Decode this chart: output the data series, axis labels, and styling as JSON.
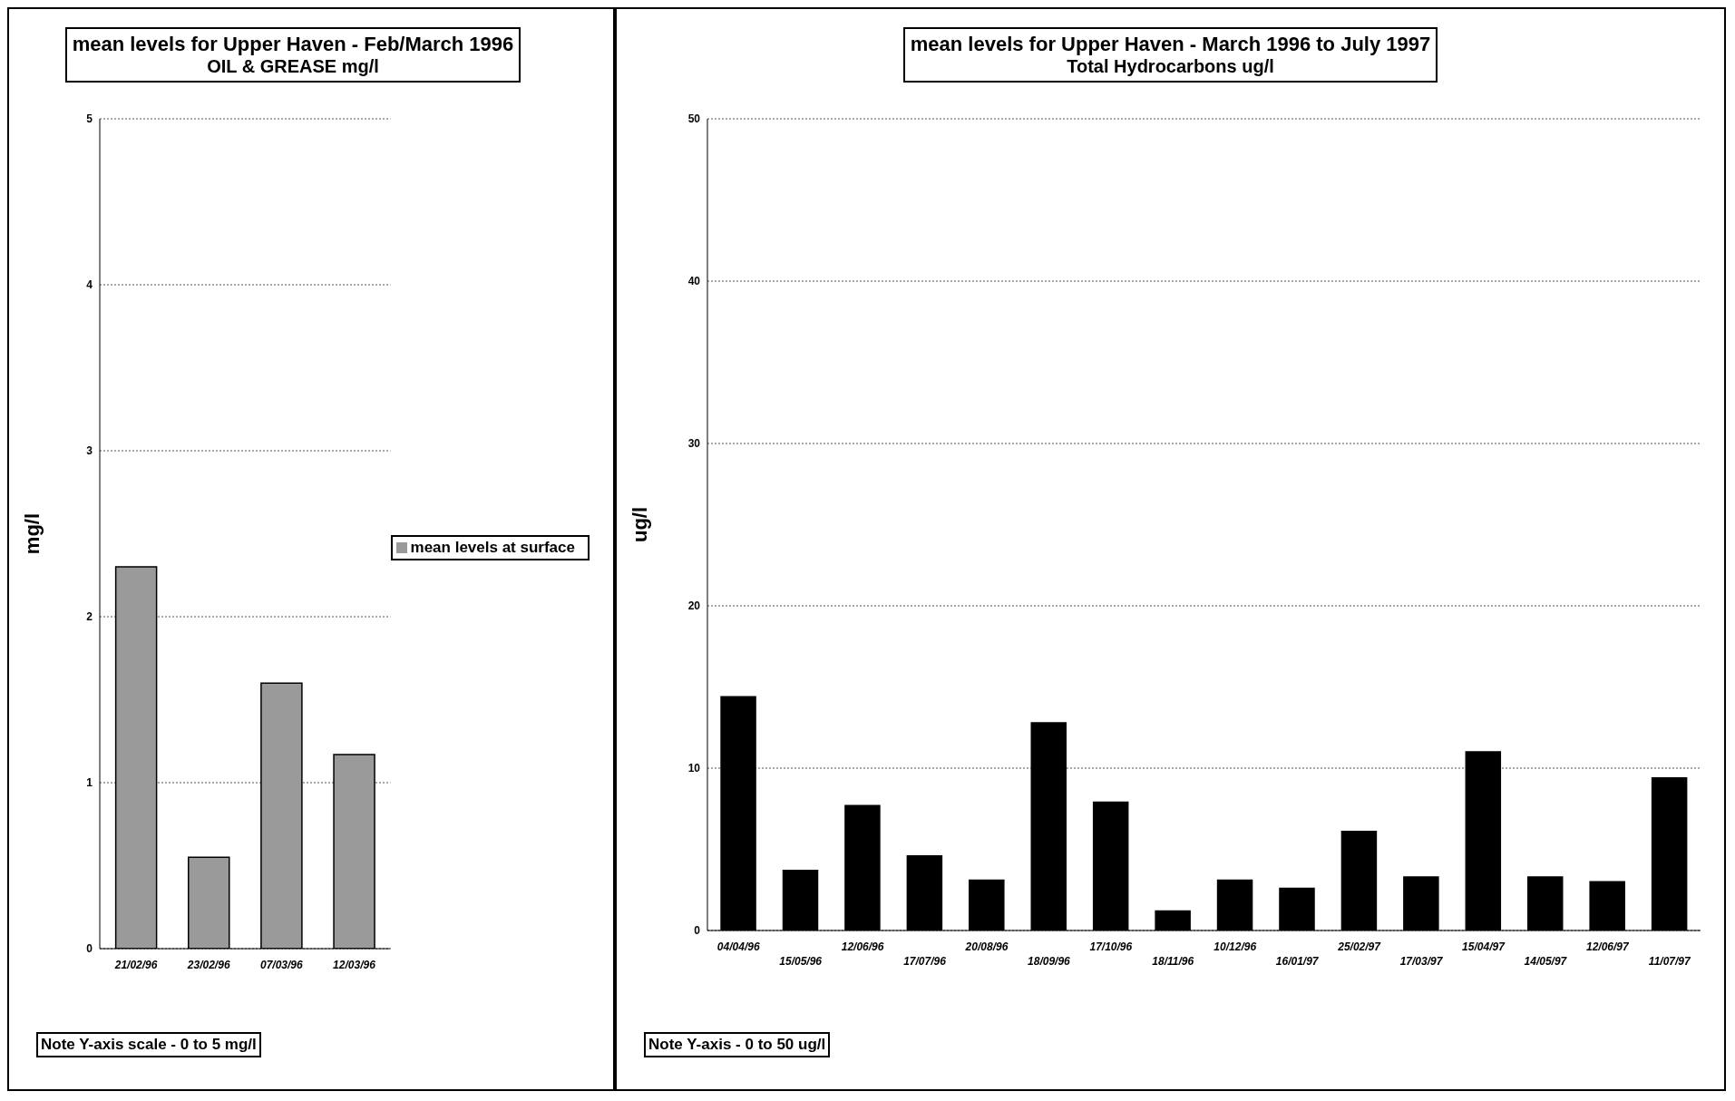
{
  "chart_data": [
    {
      "type": "bar",
      "title": "mean levels for Upper Haven - Feb/March 1996",
      "subtitle": "OIL & GREASE mg/l",
      "ylabel": "mg/l",
      "categories": [
        "21/02/96",
        "23/02/96",
        "07/03/96",
        "12/03/96"
      ],
      "series": [
        {
          "name": "mean levels at surface",
          "color": "#9a9a9a",
          "values": [
            2.3,
            0.55,
            1.6,
            1.17
          ]
        }
      ],
      "ylim": [
        0,
        5
      ],
      "yticks": [
        0,
        1,
        2,
        3,
        4,
        5
      ],
      "grid": "y",
      "legend": "right",
      "annotations": [
        "Note Y-axis scale - 0 to 5 mg/l"
      ]
    },
    {
      "type": "bar",
      "title": "mean levels for Upper Haven - March 1996 to July 1997",
      "subtitle": "Total Hydrocarbons ug/l",
      "ylabel": "ug/l",
      "categories": [
        "04/04/96",
        "15/05/96",
        "12/06/96",
        "17/07/96",
        "20/08/96",
        "18/09/96",
        "17/10/96",
        "18/11/96",
        "10/12/96",
        "16/01/97",
        "25/02/97",
        "17/03/97",
        "15/04/97",
        "14/05/97",
        "12/06/97",
        "11/07/97"
      ],
      "series": [
        {
          "color": "#000000",
          "values": [
            14.4,
            3.7,
            7.7,
            4.6,
            3.1,
            12.8,
            7.9,
            1.2,
            3.1,
            2.6,
            6.1,
            3.3,
            11.0,
            3.3,
            3.0,
            9.4
          ]
        }
      ],
      "ylim": [
        0,
        50
      ],
      "yticks": [
        0,
        10,
        20,
        30,
        40,
        50
      ],
      "grid": "y",
      "annotations": [
        "Note Y-axis - 0 to 50 ug/l"
      ]
    }
  ]
}
